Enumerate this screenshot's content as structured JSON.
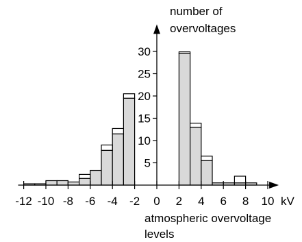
{
  "chart_data": {
    "type": "bar",
    "title": "",
    "xlabel": "atmospheric overvoltage levels",
    "xlabel_lines": [
      "atmospheric overvoltage",
      "levels"
    ],
    "x_unit": "kV",
    "ylabel": "number of overvoltages",
    "ylabel_lines": [
      "number of",
      "overvoltages"
    ],
    "xlim": [
      -12.5,
      10.5
    ],
    "ylim": [
      0,
      33
    ],
    "bin_width": 1,
    "x_ticks": [
      -12,
      -10,
      -8,
      -6,
      -4,
      -2,
      0,
      2,
      4,
      6,
      8,
      10
    ],
    "x_tick_labels": [
      "-12",
      "-10",
      "-8",
      "-6",
      "-4",
      "-2",
      "0",
      "2",
      "4",
      "6",
      "8",
      "10"
    ],
    "y_ticks": [
      5,
      10,
      15,
      20,
      25,
      30
    ],
    "y_tick_labels": [
      "5",
      "10",
      "15",
      "20",
      "25",
      "30"
    ],
    "grid": false,
    "series": [
      {
        "fill": "#d9d9d9",
        "bins": [
          {
            "x0": -12,
            "x1": -11,
            "value": 0.3
          },
          {
            "x0": -11,
            "x1": -10,
            "value": 0.3
          },
          {
            "x0": -10,
            "x1": -9,
            "value": 1
          },
          {
            "x0": -9,
            "x1": -8,
            "value": 1
          },
          {
            "x0": -8,
            "x1": -7,
            "value": 0.7
          },
          {
            "x0": -7,
            "x1": -6,
            "value": 1.5
          },
          {
            "x0": -6,
            "x1": -5,
            "value": 3.3
          },
          {
            "x0": -5,
            "x1": -4,
            "value": 7.8
          },
          {
            "x0": -4,
            "x1": -3,
            "value": 11.5
          },
          {
            "x0": -3,
            "x1": -2,
            "value": 19.5
          },
          {
            "x0": 2,
            "x1": 3,
            "value": 29.5
          },
          {
            "x0": 3,
            "x1": 4,
            "value": 13
          },
          {
            "x0": 4,
            "x1": 5,
            "value": 5.5
          },
          {
            "x0": 5,
            "x1": 6,
            "value": 0.5
          },
          {
            "x0": 6,
            "x1": 7,
            "value": 0.5
          },
          {
            "x0": 7,
            "x1": 8,
            "value": 0.5
          },
          {
            "x0": 8,
            "x1": 9,
            "value": 0.5
          }
        ]
      },
      {
        "fill": "#ffffff",
        "stacked_on_previous": true,
        "bins": [
          {
            "x0": -7,
            "x1": -6,
            "value": 0.9
          },
          {
            "x0": -5,
            "x1": -4,
            "value": 1.2
          },
          {
            "x0": -4,
            "x1": -3,
            "value": 1.2
          },
          {
            "x0": -3,
            "x1": -2,
            "value": 1
          },
          {
            "x0": 2,
            "x1": 3,
            "value": 0.4
          },
          {
            "x0": 3,
            "x1": 4,
            "value": 0.9
          },
          {
            "x0": 4,
            "x1": 5,
            "value": 1
          },
          {
            "x0": 7,
            "x1": 8,
            "value": 1.5
          }
        ]
      }
    ]
  }
}
